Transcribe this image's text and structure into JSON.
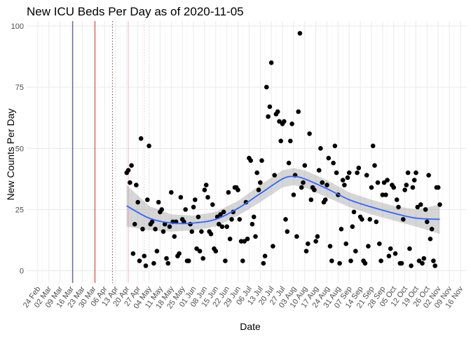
{
  "chart_data": {
    "type": "scatter",
    "title": "New ICU Beds Per Day as of 2020-11-05",
    "xlabel": "Date",
    "ylabel": "New Counts Per Day",
    "xlim": [
      "2020-02-17",
      "2020-11-20"
    ],
    "ylim": [
      -5,
      102
    ],
    "y_ticks": [
      0,
      25,
      50,
      75,
      100
    ],
    "x_ticks": [
      {
        "date": "2020-02-24",
        "label": "24 Feb"
      },
      {
        "date": "2020-03-02",
        "label": "02 Mar"
      },
      {
        "date": "2020-03-09",
        "label": "09 Mar"
      },
      {
        "date": "2020-03-16",
        "label": "16 Mar"
      },
      {
        "date": "2020-03-23",
        "label": "23 Mar"
      },
      {
        "date": "2020-03-30",
        "label": "30 Mar"
      },
      {
        "date": "2020-04-06",
        "label": "06 Apr"
      },
      {
        "date": "2020-04-13",
        "label": "13 Apr"
      },
      {
        "date": "2020-04-20",
        "label": "20 Apr"
      },
      {
        "date": "2020-04-27",
        "label": "27 Apr"
      },
      {
        "date": "2020-05-04",
        "label": "04 May"
      },
      {
        "date": "2020-05-11",
        "label": "11 May"
      },
      {
        "date": "2020-05-18",
        "label": "18 May"
      },
      {
        "date": "2020-05-25",
        "label": "25 May"
      },
      {
        "date": "2020-06-01",
        "label": "01 Jun"
      },
      {
        "date": "2020-06-08",
        "label": "08 Jun"
      },
      {
        "date": "2020-06-15",
        "label": "15 Jun"
      },
      {
        "date": "2020-06-22",
        "label": "22 Jun"
      },
      {
        "date": "2020-06-29",
        "label": "29 Jun"
      },
      {
        "date": "2020-07-06",
        "label": "06 Jul"
      },
      {
        "date": "2020-07-13",
        "label": "13 Jul"
      },
      {
        "date": "2020-07-20",
        "label": "20 Jul"
      },
      {
        "date": "2020-07-27",
        "label": "27 Jul"
      },
      {
        "date": "2020-08-03",
        "label": "03 Aug"
      },
      {
        "date": "2020-08-10",
        "label": "10 Aug"
      },
      {
        "date": "2020-08-17",
        "label": "17 Aug"
      },
      {
        "date": "2020-08-24",
        "label": "24 Aug"
      },
      {
        "date": "2020-08-31",
        "label": "31 Aug"
      },
      {
        "date": "2020-09-07",
        "label": "07 Sep"
      },
      {
        "date": "2020-09-14",
        "label": "14 Sep"
      },
      {
        "date": "2020-09-21",
        "label": "21 Sep"
      },
      {
        "date": "2020-09-28",
        "label": "28 Sep"
      },
      {
        "date": "2020-10-05",
        "label": "05 Oct"
      },
      {
        "date": "2020-10-12",
        "label": "12 Oct"
      },
      {
        "date": "2020-10-19",
        "label": "19 Oct"
      },
      {
        "date": "2020-10-26",
        "label": "26 Oct"
      },
      {
        "date": "2020-11-02",
        "label": "02 Nov"
      },
      {
        "date": "2020-11-09",
        "label": "09 Nov"
      },
      {
        "date": "2020-11-16",
        "label": "16 Nov"
      }
    ],
    "vlines": [
      {
        "date": "2020-03-17",
        "style": "solid",
        "color": "#2c2c7a"
      },
      {
        "date": "2020-03-31",
        "style": "solid",
        "color": "#c0392b"
      },
      {
        "date": "2020-04-11",
        "style": "dotted",
        "color": "#8b3a3a"
      },
      {
        "date": "2020-04-21",
        "style": "solid",
        "color": "#f4b6c2"
      },
      {
        "date": "2020-05-01",
        "style": "dotted",
        "color": "#f4b6c2"
      }
    ],
    "points": [
      {
        "x": "2020-04-20",
        "y": 40
      },
      {
        "x": "2020-04-21",
        "y": 41
      },
      {
        "x": "2020-04-22",
        "y": 36
      },
      {
        "x": "2020-04-23",
        "y": 43
      },
      {
        "x": "2020-04-24",
        "y": 7
      },
      {
        "x": "2020-04-25",
        "y": 19
      },
      {
        "x": "2020-04-26",
        "y": 35
      },
      {
        "x": "2020-04-27",
        "y": 28
      },
      {
        "x": "2020-04-28",
        "y": 4
      },
      {
        "x": "2020-04-29",
        "y": 54
      },
      {
        "x": "2020-04-30",
        "y": 17
      },
      {
        "x": "2020-05-01",
        "y": 6
      },
      {
        "x": "2020-05-02",
        "y": 2
      },
      {
        "x": "2020-05-03",
        "y": 29
      },
      {
        "x": "2020-05-04",
        "y": 51
      },
      {
        "x": "2020-05-05",
        "y": 19
      },
      {
        "x": "2020-05-06",
        "y": 20
      },
      {
        "x": "2020-05-07",
        "y": 3
      },
      {
        "x": "2020-05-08",
        "y": 17
      },
      {
        "x": "2020-05-09",
        "y": 8
      },
      {
        "x": "2020-05-10",
        "y": 28
      },
      {
        "x": "2020-05-11",
        "y": 24
      },
      {
        "x": "2020-05-12",
        "y": 25
      },
      {
        "x": "2020-05-13",
        "y": 16
      },
      {
        "x": "2020-05-14",
        "y": 19
      },
      {
        "x": "2020-05-15",
        "y": 5
      },
      {
        "x": "2020-05-16",
        "y": 3
      },
      {
        "x": "2020-05-17",
        "y": 18
      },
      {
        "x": "2020-05-18",
        "y": 32
      },
      {
        "x": "2020-05-19",
        "y": 20
      },
      {
        "x": "2020-05-20",
        "y": 14
      },
      {
        "x": "2020-05-21",
        "y": 20
      },
      {
        "x": "2020-05-22",
        "y": 6
      },
      {
        "x": "2020-05-23",
        "y": 7
      },
      {
        "x": "2020-05-24",
        "y": 30
      },
      {
        "x": "2020-05-25",
        "y": 21
      },
      {
        "x": "2020-05-26",
        "y": 20
      },
      {
        "x": "2020-05-27",
        "y": 25
      },
      {
        "x": "2020-05-28",
        "y": 4
      },
      {
        "x": "2020-05-29",
        "y": 4
      },
      {
        "x": "2020-05-30",
        "y": 19
      },
      {
        "x": "2020-05-31",
        "y": 16
      },
      {
        "x": "2020-06-01",
        "y": 26
      },
      {
        "x": "2020-06-02",
        "y": 29
      },
      {
        "x": "2020-06-03",
        "y": 9
      },
      {
        "x": "2020-06-04",
        "y": 22
      },
      {
        "x": "2020-06-05",
        "y": 8
      },
      {
        "x": "2020-06-06",
        "y": 16
      },
      {
        "x": "2020-06-07",
        "y": 5
      },
      {
        "x": "2020-06-08",
        "y": 33
      },
      {
        "x": "2020-06-09",
        "y": 35
      },
      {
        "x": "2020-06-10",
        "y": 30
      },
      {
        "x": "2020-06-11",
        "y": 16
      },
      {
        "x": "2020-06-12",
        "y": 15
      },
      {
        "x": "2020-06-13",
        "y": 27
      },
      {
        "x": "2020-06-14",
        "y": 9
      },
      {
        "x": "2020-06-15",
        "y": 8
      },
      {
        "x": "2020-06-16",
        "y": 22
      },
      {
        "x": "2020-06-17",
        "y": 19
      },
      {
        "x": "2020-06-18",
        "y": 23
      },
      {
        "x": "2020-06-19",
        "y": 18
      },
      {
        "x": "2020-06-20",
        "y": 24
      },
      {
        "x": "2020-06-21",
        "y": 4
      },
      {
        "x": "2020-06-22",
        "y": 18
      },
      {
        "x": "2020-06-23",
        "y": 32
      },
      {
        "x": "2020-06-24",
        "y": 13
      },
      {
        "x": "2020-06-25",
        "y": 21
      },
      {
        "x": "2020-06-26",
        "y": 24
      },
      {
        "x": "2020-06-27",
        "y": 34
      },
      {
        "x": "2020-06-28",
        "y": 34
      },
      {
        "x": "2020-06-29",
        "y": 33
      },
      {
        "x": "2020-06-30",
        "y": 21
      },
      {
        "x": "2020-07-01",
        "y": 12
      },
      {
        "x": "2020-07-02",
        "y": 4
      },
      {
        "x": "2020-07-03",
        "y": 12
      },
      {
        "x": "2020-07-04",
        "y": 28
      },
      {
        "x": "2020-07-05",
        "y": 13
      },
      {
        "x": "2020-07-06",
        "y": 46
      },
      {
        "x": "2020-07-07",
        "y": 45
      },
      {
        "x": "2020-07-08",
        "y": 19
      },
      {
        "x": "2020-07-09",
        "y": 22
      },
      {
        "x": "2020-07-10",
        "y": 14
      },
      {
        "x": "2020-07-11",
        "y": 40
      },
      {
        "x": "2020-07-12",
        "y": 33
      },
      {
        "x": "2020-07-13",
        "y": 36
      },
      {
        "x": "2020-07-14",
        "y": 45
      },
      {
        "x": "2020-07-15",
        "y": 3
      },
      {
        "x": "2020-07-16",
        "y": 6
      },
      {
        "x": "2020-07-17",
        "y": 75
      },
      {
        "x": "2020-07-18",
        "y": 63
      },
      {
        "x": "2020-07-19",
        "y": 67
      },
      {
        "x": "2020-07-20",
        "y": 85
      },
      {
        "x": "2020-07-21",
        "y": 10
      },
      {
        "x": "2020-07-22",
        "y": 39
      },
      {
        "x": "2020-07-23",
        "y": 64
      },
      {
        "x": "2020-07-24",
        "y": 65
      },
      {
        "x": "2020-07-25",
        "y": 61
      },
      {
        "x": "2020-07-26",
        "y": 53
      },
      {
        "x": "2020-07-27",
        "y": 60
      },
      {
        "x": "2020-07-28",
        "y": 61
      },
      {
        "x": "2020-07-29",
        "y": 21
      },
      {
        "x": "2020-07-30",
        "y": 16
      },
      {
        "x": "2020-07-31",
        "y": 44
      },
      {
        "x": "2020-08-01",
        "y": 53
      },
      {
        "x": "2020-08-02",
        "y": 60
      },
      {
        "x": "2020-08-03",
        "y": 31
      },
      {
        "x": "2020-08-04",
        "y": 39
      },
      {
        "x": "2020-08-05",
        "y": 14
      },
      {
        "x": "2020-08-06",
        "y": 65
      },
      {
        "x": "2020-08-07",
        "y": 97
      },
      {
        "x": "2020-08-08",
        "y": 34
      },
      {
        "x": "2020-08-09",
        "y": 36
      },
      {
        "x": "2020-08-10",
        "y": 43
      },
      {
        "x": "2020-08-11",
        "y": 8
      },
      {
        "x": "2020-08-12",
        "y": 11
      },
      {
        "x": "2020-08-13",
        "y": 56
      },
      {
        "x": "2020-08-14",
        "y": 29
      },
      {
        "x": "2020-08-15",
        "y": 34
      },
      {
        "x": "2020-08-16",
        "y": 33
      },
      {
        "x": "2020-08-17",
        "y": 12
      },
      {
        "x": "2020-08-18",
        "y": 14
      },
      {
        "x": "2020-08-19",
        "y": 41
      },
      {
        "x": "2020-08-20",
        "y": 50
      },
      {
        "x": "2020-08-21",
        "y": 36
      },
      {
        "x": "2020-08-22",
        "y": 28
      },
      {
        "x": "2020-08-23",
        "y": 29
      },
      {
        "x": "2020-08-24",
        "y": 35
      },
      {
        "x": "2020-08-25",
        "y": 46
      },
      {
        "x": "2020-08-26",
        "y": 10
      },
      {
        "x": "2020-08-27",
        "y": 4
      },
      {
        "x": "2020-08-28",
        "y": 44
      },
      {
        "x": "2020-08-29",
        "y": 51
      },
      {
        "x": "2020-08-30",
        "y": 40
      },
      {
        "x": "2020-08-31",
        "y": 31
      },
      {
        "x": "2020-09-01",
        "y": 3
      },
      {
        "x": "2020-09-02",
        "y": 17
      },
      {
        "x": "2020-09-03",
        "y": 37
      },
      {
        "x": "2020-09-04",
        "y": 35
      },
      {
        "x": "2020-09-05",
        "y": 11
      },
      {
        "x": "2020-09-06",
        "y": 38
      },
      {
        "x": "2020-09-07",
        "y": 40
      },
      {
        "x": "2020-09-08",
        "y": 4
      },
      {
        "x": "2020-09-09",
        "y": 18
      },
      {
        "x": "2020-09-10",
        "y": 24
      },
      {
        "x": "2020-09-11",
        "y": 8
      },
      {
        "x": "2020-09-12",
        "y": 40
      },
      {
        "x": "2020-09-13",
        "y": 42
      },
      {
        "x": "2020-09-14",
        "y": 22
      },
      {
        "x": "2020-09-15",
        "y": 21
      },
      {
        "x": "2020-09-16",
        "y": 4
      },
      {
        "x": "2020-09-17",
        "y": 3
      },
      {
        "x": "2020-09-18",
        "y": 39
      },
      {
        "x": "2020-09-19",
        "y": 10
      },
      {
        "x": "2020-09-20",
        "y": 21
      },
      {
        "x": "2020-09-21",
        "y": 34
      },
      {
        "x": "2020-09-22",
        "y": 51
      },
      {
        "x": "2020-09-23",
        "y": 43
      },
      {
        "x": "2020-09-24",
        "y": 20
      },
      {
        "x": "2020-09-25",
        "y": 36
      },
      {
        "x": "2020-09-26",
        "y": 11
      },
      {
        "x": "2020-09-27",
        "y": 4
      },
      {
        "x": "2020-09-28",
        "y": 31
      },
      {
        "x": "2020-09-29",
        "y": 36
      },
      {
        "x": "2020-09-30",
        "y": 31
      },
      {
        "x": "2020-10-01",
        "y": 37
      },
      {
        "x": "2020-10-02",
        "y": 6
      },
      {
        "x": "2020-10-03",
        "y": 9
      },
      {
        "x": "2020-10-04",
        "y": 35
      },
      {
        "x": "2020-10-05",
        "y": 34
      },
      {
        "x": "2020-10-06",
        "y": 7
      },
      {
        "x": "2020-10-07",
        "y": 29
      },
      {
        "x": "2020-10-08",
        "y": 26
      },
      {
        "x": "2020-10-09",
        "y": 3
      },
      {
        "x": "2020-10-10",
        "y": 3
      },
      {
        "x": "2020-10-11",
        "y": 21
      },
      {
        "x": "2020-10-12",
        "y": 33
      },
      {
        "x": "2020-10-13",
        "y": 35
      },
      {
        "x": "2020-10-14",
        "y": 40
      },
      {
        "x": "2020-10-15",
        "y": 9
      },
      {
        "x": "2020-10-16",
        "y": 2
      },
      {
        "x": "2020-10-17",
        "y": 34
      },
      {
        "x": "2020-10-18",
        "y": 37
      },
      {
        "x": "2020-10-19",
        "y": 40
      },
      {
        "x": "2020-10-20",
        "y": 26
      },
      {
        "x": "2020-10-21",
        "y": 4
      },
      {
        "x": "2020-10-22",
        "y": 27
      },
      {
        "x": "2020-10-23",
        "y": 3
      },
      {
        "x": "2020-10-24",
        "y": 5
      },
      {
        "x": "2020-10-25",
        "y": 25
      },
      {
        "x": "2020-10-26",
        "y": 20
      },
      {
        "x": "2020-10-27",
        "y": 39
      },
      {
        "x": "2020-10-28",
        "y": 13
      },
      {
        "x": "2020-10-29",
        "y": 17
      },
      {
        "x": "2020-10-30",
        "y": 4
      },
      {
        "x": "2020-10-31",
        "y": 2
      },
      {
        "x": "2020-11-01",
        "y": 34
      },
      {
        "x": "2020-11-02",
        "y": 34
      },
      {
        "x": "2020-11-03",
        "y": 27
      }
    ],
    "smooth": [
      {
        "x": "2020-04-20",
        "y": 26.5,
        "lo": 18,
        "hi": 35
      },
      {
        "x": "2020-05-04",
        "y": 21.5,
        "lo": 16.5,
        "hi": 26.5
      },
      {
        "x": "2020-05-18",
        "y": 19.5,
        "lo": 16,
        "hi": 23
      },
      {
        "x": "2020-06-01",
        "y": 19.5,
        "lo": 16.5,
        "hi": 22.5
      },
      {
        "x": "2020-06-15",
        "y": 21,
        "lo": 18,
        "hi": 24
      },
      {
        "x": "2020-06-29",
        "y": 25.5,
        "lo": 22.5,
        "hi": 28.5
      },
      {
        "x": "2020-07-13",
        "y": 31.5,
        "lo": 28,
        "hi": 35
      },
      {
        "x": "2020-07-27",
        "y": 37.5,
        "lo": 34,
        "hi": 41
      },
      {
        "x": "2020-08-03",
        "y": 38.5,
        "lo": 35,
        "hi": 42
      },
      {
        "x": "2020-08-10",
        "y": 37.5,
        "lo": 34,
        "hi": 41
      },
      {
        "x": "2020-08-24",
        "y": 33.5,
        "lo": 30,
        "hi": 37
      },
      {
        "x": "2020-09-07",
        "y": 29,
        "lo": 26,
        "hi": 32
      },
      {
        "x": "2020-09-21",
        "y": 26,
        "lo": 23,
        "hi": 29
      },
      {
        "x": "2020-10-05",
        "y": 23.5,
        "lo": 20.5,
        "hi": 26.5
      },
      {
        "x": "2020-10-19",
        "y": 21.5,
        "lo": 18,
        "hi": 25
      },
      {
        "x": "2020-11-03",
        "y": 21,
        "lo": 15,
        "hi": 27
      }
    ],
    "colors": {
      "points": "#000000",
      "smooth_line": "#3366ff",
      "ribbon": "#999999",
      "grid_major": "#ebebeb",
      "grid_minor": "#f5f5f5"
    },
    "grid": true,
    "legend": "none"
  }
}
